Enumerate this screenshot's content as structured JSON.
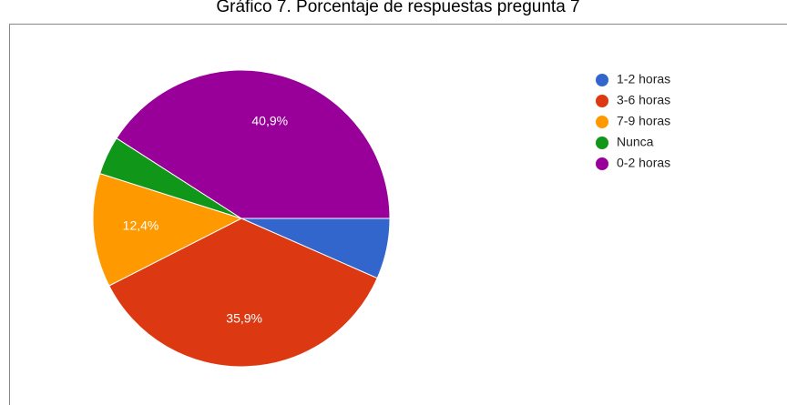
{
  "chart_data": {
    "type": "pie",
    "title": "Gráfico 7. Porcentaje de respuestas pregunta 7",
    "categories": [
      "1-2 horas",
      "3-6 horas",
      "7-9 horas",
      "Nunca",
      "0-2 horas"
    ],
    "values": [
      6.6,
      35.9,
      12.4,
      4.2,
      40.9
    ],
    "value_labels": [
      null,
      "35,9%",
      "12,4%",
      null,
      "40,9%"
    ],
    "colors": [
      "#3366cc",
      "#dc3912",
      "#ff9900",
      "#109618",
      "#990099"
    ],
    "legend": "right"
  }
}
